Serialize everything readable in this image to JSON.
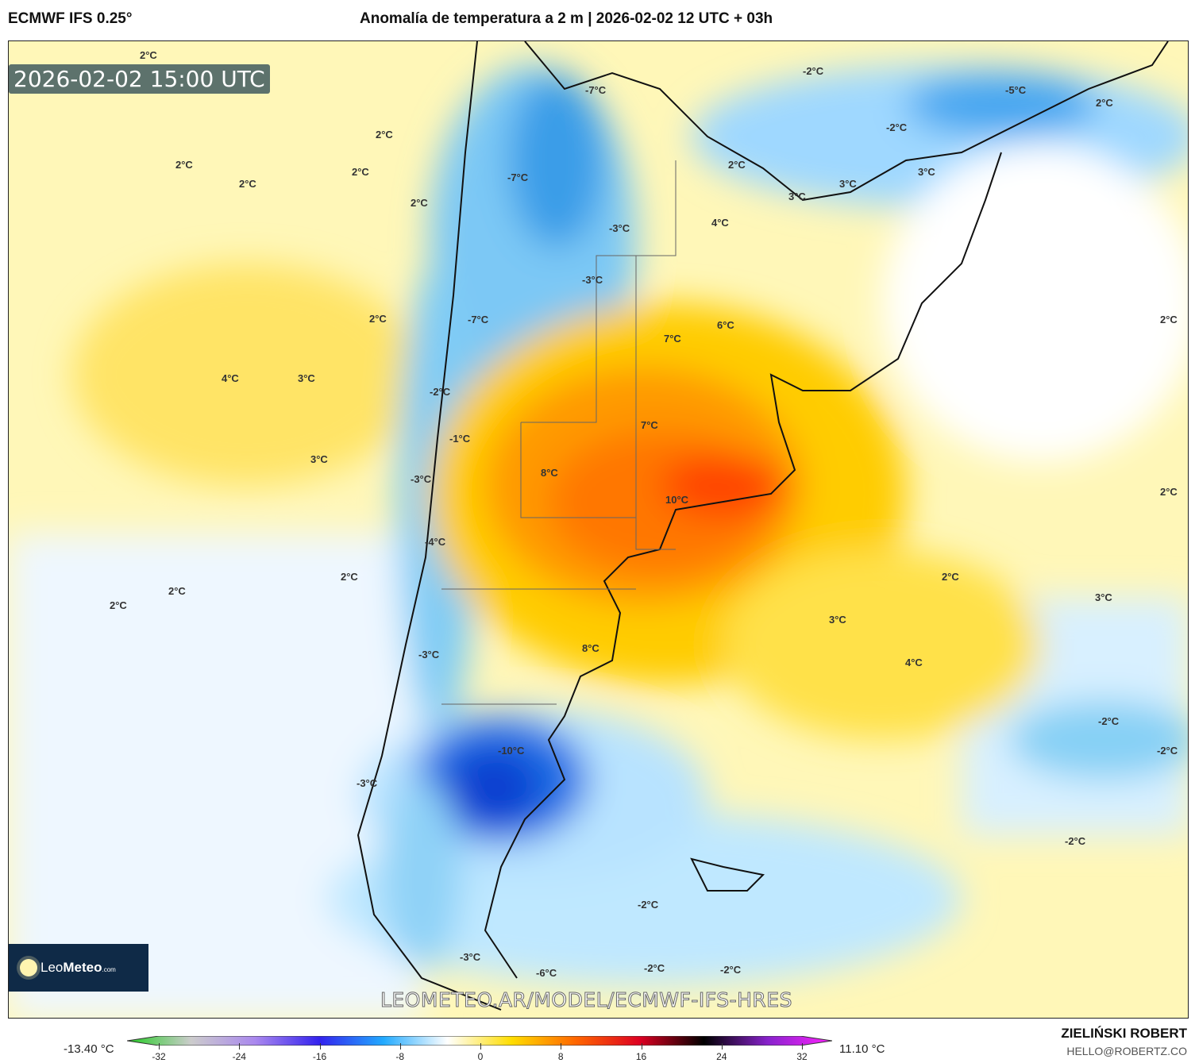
{
  "header": {
    "model": "ECMWF IFS 0.25°",
    "title": "Anomalía de temperatura a 2 m | 2026-02-02 12 UTC + 03h"
  },
  "map": {
    "timestamp": "2026-02-02 15:00 UTC",
    "watermark_url": "LEOMETEO.AR/MODEL/ECMWF-IFS-HRES",
    "logo": {
      "name": "LeoMeteo",
      "prefix": "Leo",
      "main": "Meteo",
      "suffix": ".com"
    },
    "labels": [
      "2°C",
      "2°C",
      "2°C",
      "2°C",
      "2°C",
      "2°C",
      "-7°C",
      "-7°C",
      "-3°C",
      "-3°C",
      "2°C",
      "4°C",
      "3°C",
      "3°C",
      "-7°C",
      "-2°C",
      "-1°C",
      "-3°C",
      "-4°C",
      "2°C",
      "2°C",
      "2°C",
      "-3°C",
      "-3°C",
      "7°C",
      "6°C",
      "7°C",
      "8°C",
      "10°C",
      "8°C",
      "4°C",
      "2°C",
      "3°C",
      "3°C",
      "2°C",
      "3°C",
      "4°C",
      "2°C",
      "-2°C",
      "-2°C",
      "2°C",
      "-5°C",
      "-2°C",
      "3°C",
      "3°C",
      "2°C",
      "-10°C",
      "-2°C",
      "-2°C",
      "-2°C",
      "-6°C",
      "-2°C",
      "-3°C",
      "-2°C"
    ]
  },
  "colorbar": {
    "min_label": "-13.40 °C",
    "max_label": "11.10 °C",
    "ticks": [
      "-32",
      "-24",
      "-16",
      "-8",
      "0",
      "8",
      "16",
      "24",
      "32"
    ],
    "colors": [
      "#22cc22",
      "#cccccc",
      "#aa88ee",
      "#3322ee",
      "#22aaff",
      "#ffffff",
      "#ffdd00",
      "#ff6600",
      "#dd0022",
      "#000000",
      "#8822cc",
      "#ff22ff"
    ]
  },
  "footer": {
    "author": "ZIELIŃSKI ROBERT",
    "email": "HELLO@ROBERTZ.CO"
  }
}
